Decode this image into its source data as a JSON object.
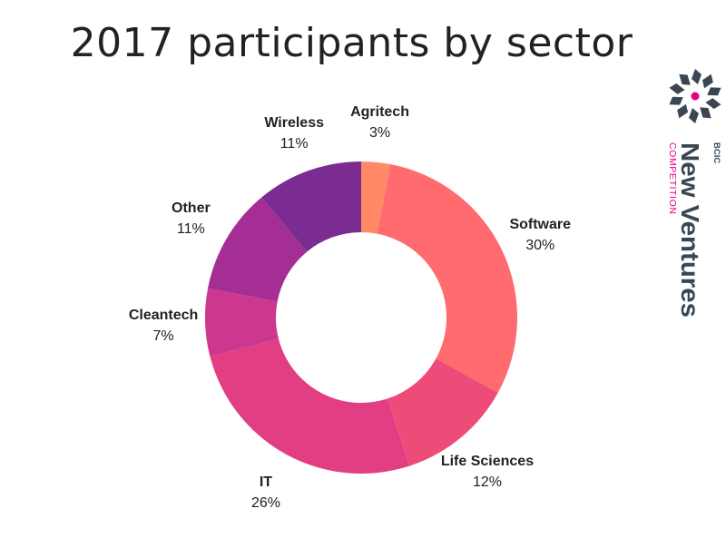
{
  "chart_data": {
    "type": "pie",
    "variant": "donut",
    "title": "2017 participants by sector",
    "slices": [
      {
        "label": "Agritech",
        "value": 3,
        "value_label": "3%",
        "color": "#ff8a65"
      },
      {
        "label": "Software",
        "value": 30,
        "value_label": "30%",
        "color": "#ff6b6e"
      },
      {
        "label": "Life Sciences",
        "value": 12,
        "value_label": "12%",
        "color": "#ee4c78"
      },
      {
        "label": "IT",
        "value": 26,
        "value_label": "26%",
        "color": "#e23e83"
      },
      {
        "label": "Cleantech",
        "value": 7,
        "value_label": "7%",
        "color": "#cc3790"
      },
      {
        "label": "Other",
        "value": 11,
        "value_label": "11%",
        "color": "#a42e93"
      },
      {
        "label": "Wireless",
        "value": 11,
        "value_label": "11%",
        "color": "#7b2c92"
      }
    ],
    "start": "12 o'clock",
    "direction": "clockwise"
  },
  "logo": {
    "small_text": "BCIC",
    "main_text": "New Ventures",
    "sub_text": "COMPETITION",
    "colors": {
      "dark": "#3a4752",
      "accent": "#e6007e"
    }
  }
}
